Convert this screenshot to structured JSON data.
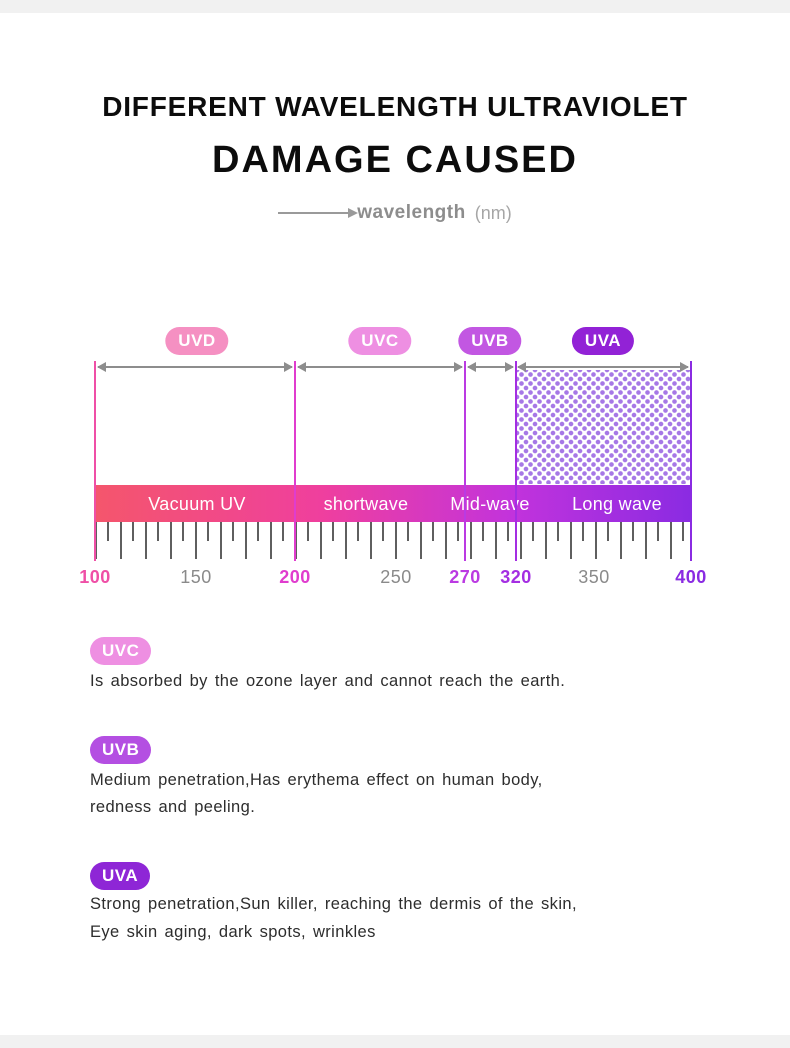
{
  "page": {
    "title_line1": "DIFFERENT WAVELENGTH ULTRAVIOLET",
    "title_line2": "DAMAGE CAUSED",
    "axis": {
      "label": "wavelength",
      "unit": "(nm)"
    }
  },
  "diagram": {
    "bands": [
      {
        "code": "UVD",
        "badge_color": "#f590c2",
        "range_label": "Vacuum UV",
        "from": 100,
        "to": 200,
        "pattern": "none"
      },
      {
        "code": "UVC",
        "badge_color": "#ee8fe2",
        "range_label": "shortwave",
        "from": 200,
        "to": 270,
        "pattern": "none"
      },
      {
        "code": "UVB",
        "badge_color": "#c257e2",
        "range_label": "Mid-wave",
        "from": 270,
        "to": 320,
        "pattern": "none"
      },
      {
        "code": "UVA",
        "badge_color": "#9222d6",
        "range_label": "Long wave",
        "from": 320,
        "to": 400,
        "pattern": "dots"
      }
    ],
    "bar_gradient": [
      "#f4566c",
      "#ef3f9e",
      "#8a2be2"
    ],
    "scale": [
      {
        "value": "100",
        "color": "#ef4fa6"
      },
      {
        "value": "150",
        "color": "#8a8a8a"
      },
      {
        "value": "200",
        "color": "#e03cce"
      },
      {
        "value": "250",
        "color": "#8a8a8a"
      },
      {
        "value": "270",
        "color": "#bb3ae2"
      },
      {
        "value": "320",
        "color": "#a42ee2"
      },
      {
        "value": "350",
        "color": "#8a8a8a"
      },
      {
        "value": "400",
        "color": "#8a2be2"
      }
    ]
  },
  "legend": [
    {
      "code": "UVC",
      "badge_color": "#ee8fe2",
      "lines": [
        "Is absorbed by the ozone layer and cannot reach the earth."
      ]
    },
    {
      "code": "UVB",
      "badge_color": "#b44fe2",
      "lines": [
        "Medium penetration,Has erythema effect on human body,",
        "redness and peeling."
      ]
    },
    {
      "code": "UVA",
      "badge_color": "#8e26d6",
      "lines": [
        "Strong penetration,Sun killer, reaching the dermis of the skin,",
        "Eye skin aging, dark spots, wrinkles"
      ]
    }
  ]
}
